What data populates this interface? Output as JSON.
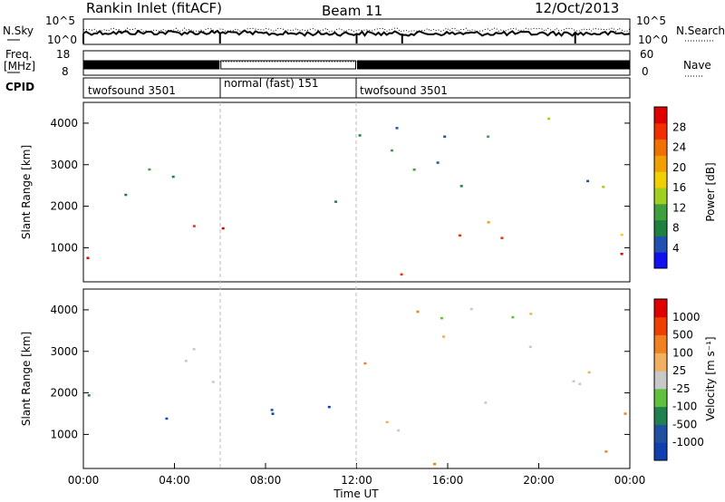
{
  "header": {
    "station": "Rankin Inlet (fitACF)",
    "beam": "Beam 11",
    "date": "12/Oct/2013"
  },
  "chart_data": [
    {
      "type": "line",
      "panel": "noise",
      "left_label": "N.Sky",
      "right_label": "N.Search",
      "left_ticks": [
        "10^5",
        "10^0"
      ],
      "right_ticks": [
        "10^5",
        "10^0"
      ]
    },
    {
      "type": "line",
      "panel": "frequency",
      "left_label_line1": "Freq.",
      "left_label_line2": "[MHz]",
      "right_label": "Nave",
      "left_ticks": [
        "18",
        "8"
      ],
      "right_ticks": [
        "60",
        "0"
      ]
    },
    {
      "type": "table",
      "panel": "cpid",
      "label": "CPID",
      "segments": [
        {
          "name": "twofsound 3501",
          "start_hour": 0,
          "end_hour": 6
        },
        {
          "name": "normal (fast) 151",
          "start_hour": 6,
          "end_hour": 12
        },
        {
          "name": "twofsound 3501",
          "start_hour": 12,
          "end_hour": 24
        }
      ]
    },
    {
      "type": "heatmap",
      "panel": "power",
      "ylabel": "Slant Range [km]",
      "xlim": [
        0,
        24
      ],
      "ylim": [
        180,
        4500
      ],
      "yticks": [
        "1000",
        "2000",
        "3000",
        "4000"
      ],
      "colorbar_label": "Power [dB]",
      "colorbar_ticks": [
        "28",
        "24",
        "20",
        "16",
        "12",
        "8",
        "4"
      ],
      "colors": [
        "#1010f0",
        "#2050b0",
        "#208040",
        "#40a040",
        "#a0d020",
        "#f0d000",
        "#f0a000",
        "#f07000",
        "#f03000",
        "#e00000"
      ]
    },
    {
      "type": "heatmap",
      "panel": "velocity",
      "ylabel": "Slant Range [km]",
      "xlabel": "Time UT",
      "xlim": [
        0,
        24
      ],
      "ylim": [
        180,
        4500
      ],
      "yticks": [
        "1000",
        "2000",
        "3000",
        "4000"
      ],
      "xticks": [
        "00:00",
        "04:00",
        "08:00",
        "12:00",
        "16:00",
        "20:00",
        "00:00"
      ],
      "colorbar_label": "Velocity [m s⁻¹]",
      "colorbar_ticks": [
        "1000",
        "500",
        "100",
        "25",
        "-25",
        "-100",
        "-500",
        "-1000"
      ],
      "colors": [
        "#1040b0",
        "#2050a0",
        "#208050",
        "#60c040",
        "#c8c8c8",
        "#f0b060",
        "#f08020",
        "#f04000",
        "#e00000"
      ]
    }
  ]
}
